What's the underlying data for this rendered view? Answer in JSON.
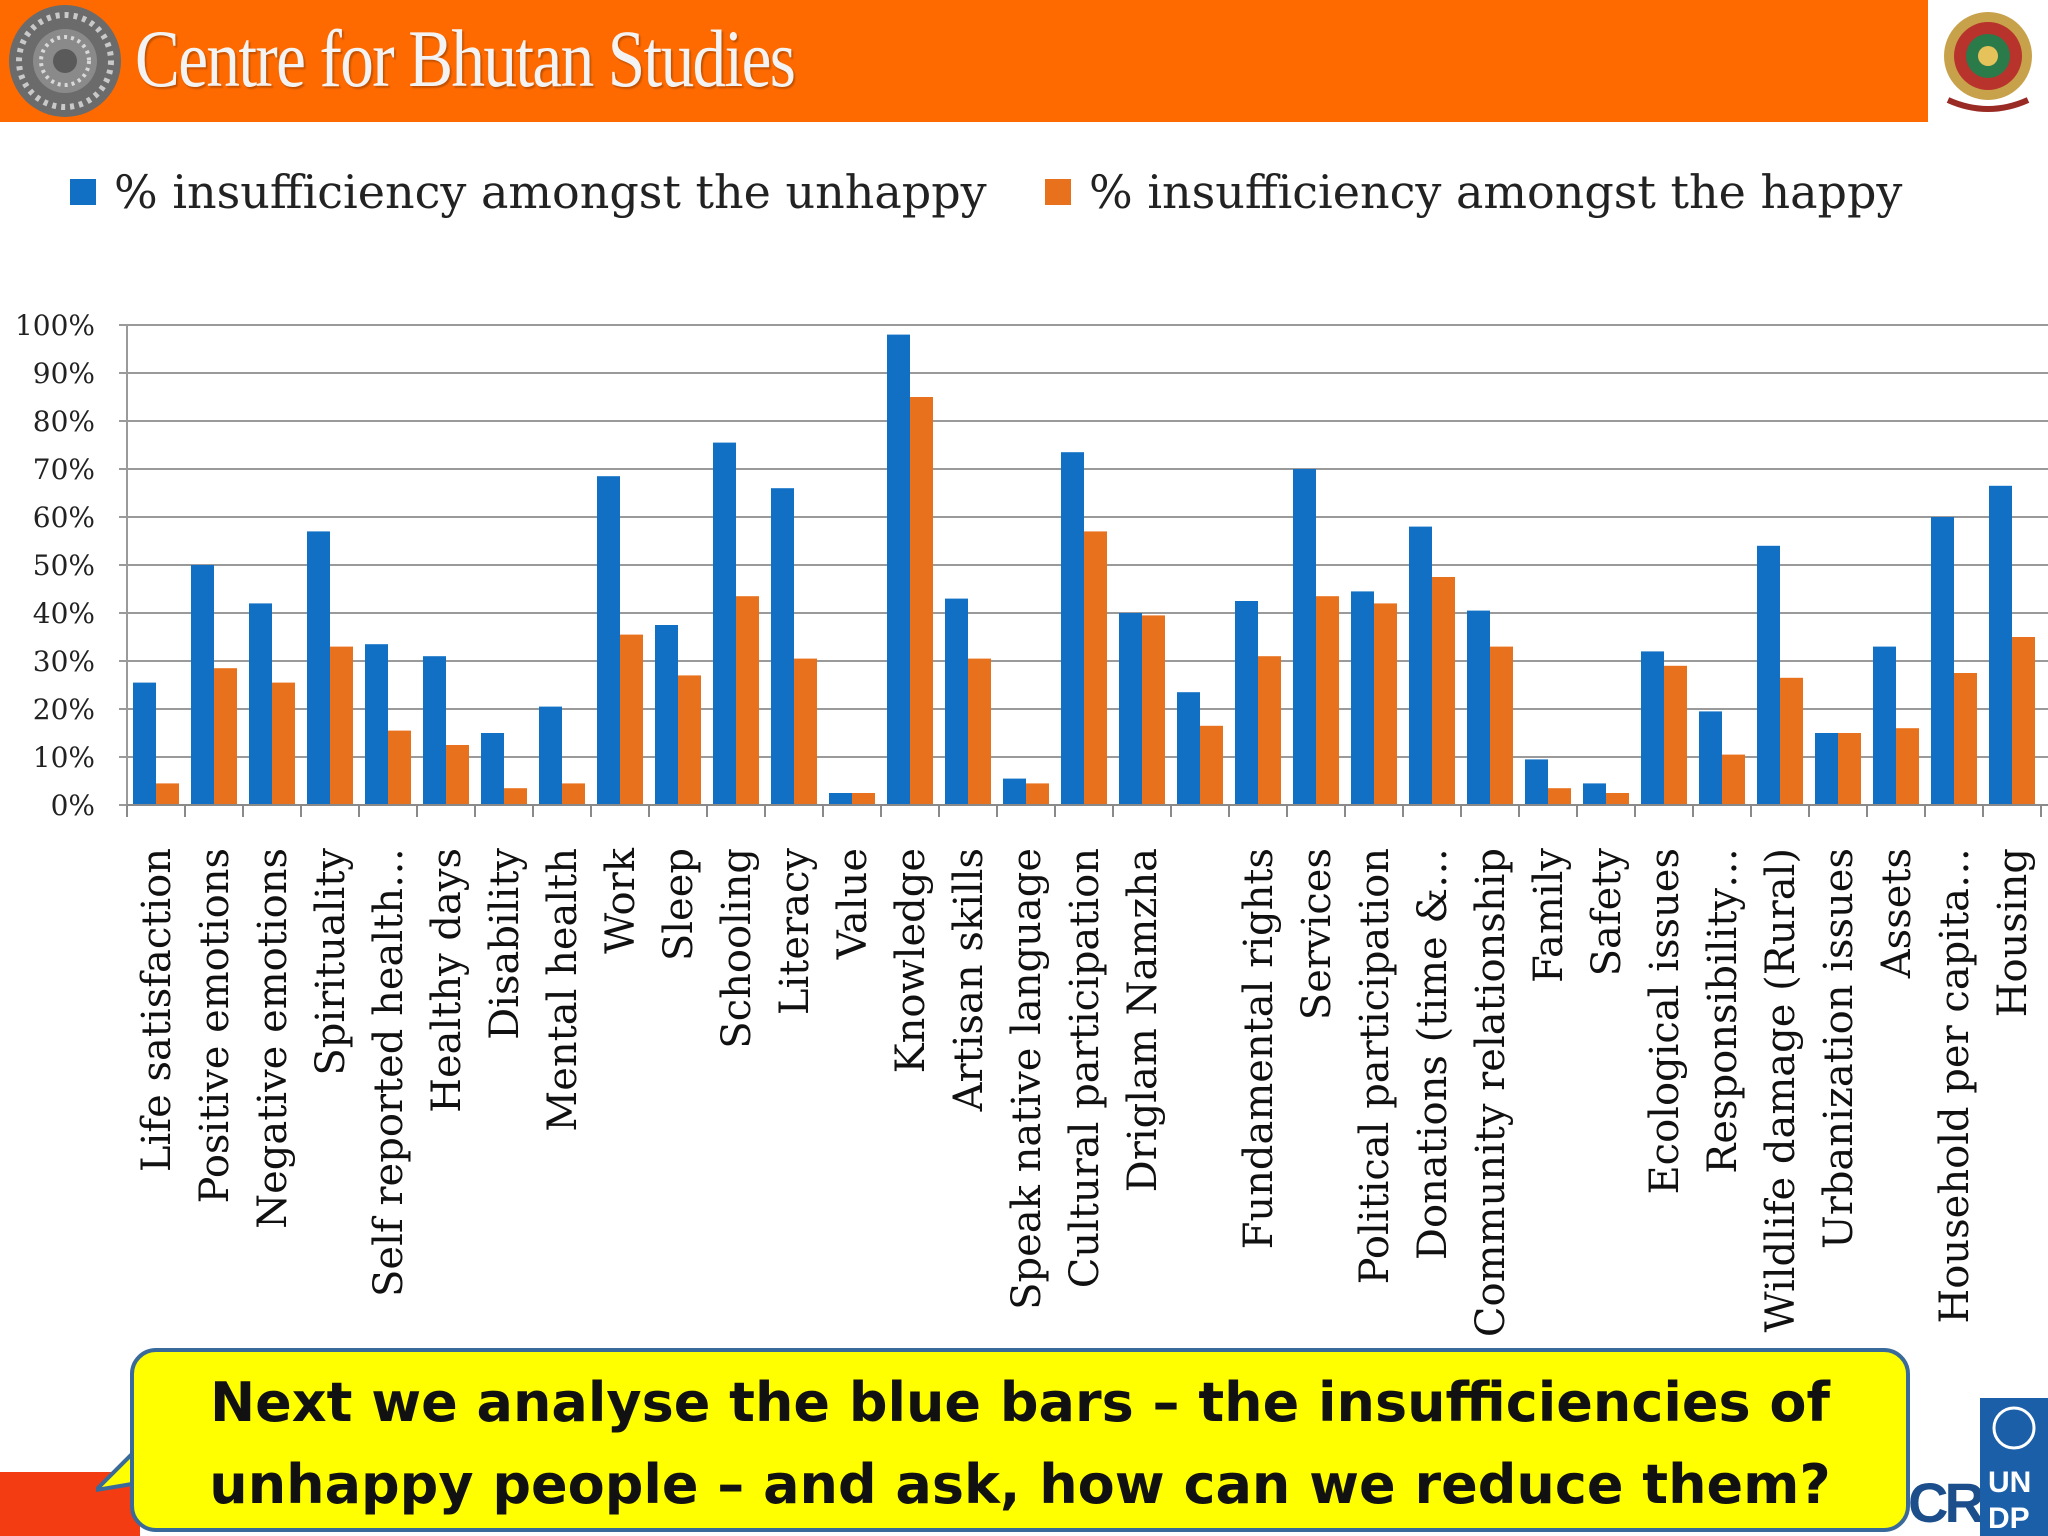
{
  "header": {
    "title": "Centre for Bhutan Studies"
  },
  "legend": {
    "unhappy_label": "% insufficiency amongst the unhappy",
    "happy_label": "% insufficiency amongst the happy"
  },
  "colors": {
    "unhappy": "#1170c4",
    "happy": "#e8711e",
    "header": "#ff6a00"
  },
  "callout": {
    "line1": "Next we analyse the blue bars – the insufficiencies of",
    "line2": "unhappy people – and ask, how can we reduce them?"
  },
  "footer": {
    "crdi": "CRDI",
    "undp": "UNDP"
  },
  "chart_data": {
    "type": "bar",
    "title": "",
    "xlabel": "",
    "ylabel": "",
    "ylim": [
      0,
      100
    ],
    "yticks": [
      "0%",
      "10%",
      "20%",
      "30%",
      "40%",
      "50%",
      "60%",
      "70%",
      "80%",
      "90%",
      "100%"
    ],
    "grid": true,
    "legend_position": "top",
    "categories": [
      "Life satisfaction",
      "Positive emotions",
      "Negative emotions",
      "Spirituality",
      "Self reported health…",
      "Healthy days",
      "Disability",
      "Mental health",
      "Work",
      "Sleep",
      "Schooling",
      "Literacy",
      "Value",
      "Knowledge",
      "Artisan skills",
      "Speak native language",
      "Cultural participation",
      "Driglam Namzha",
      "",
      "Fundamental rights",
      "Services",
      "Political participation",
      "Donations (time &…",
      "Community relationship",
      "Family",
      "Safety",
      "Ecological issues",
      "Responsibility…",
      "Wildlife damage (Rural)",
      "Urbanization issues",
      "Assets",
      "Household per capita…",
      "Housing"
    ],
    "series": [
      {
        "name": "% insufficiency amongst the unhappy",
        "values": [
          25.5,
          50,
          42,
          57,
          33.5,
          31,
          15,
          20.5,
          68.5,
          37.5,
          75.5,
          66,
          2.5,
          98,
          43,
          5.5,
          73.5,
          40,
          23.5,
          42.5,
          70,
          44.5,
          58,
          40.5,
          9.5,
          4.5,
          32,
          19.5,
          54,
          15,
          33,
          60,
          66.5
        ]
      },
      {
        "name": "% insufficiency amongst the happy",
        "values": [
          4.5,
          28.5,
          25.5,
          33,
          15.5,
          12.5,
          3.5,
          4.5,
          35.5,
          27,
          43.5,
          30.5,
          2.5,
          85,
          30.5,
          4.5,
          57,
          39.5,
          16.5,
          31,
          43.5,
          42,
          47.5,
          33,
          3.5,
          2.5,
          29,
          10.5,
          26.5,
          15,
          16,
          27.5,
          35
        ]
      }
    ]
  }
}
